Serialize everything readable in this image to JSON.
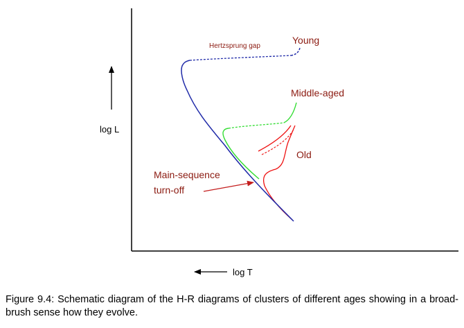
{
  "colors": {
    "axes": "#000000",
    "main_sequence": "#1f2aa8",
    "young_cluster": "#1f2aa8",
    "middle_aged_cluster": "#33dd33",
    "old_cluster": "#ee1111",
    "label_text": "#8b1a10",
    "annotation_arrow": "#c41e1e"
  },
  "axes": {
    "y_label": "log L",
    "x_label": "log T"
  },
  "labels": {
    "hertzsprung_gap": "Hertzsprung gap",
    "young": "Young",
    "middle_aged": "Middle-aged",
    "old": "Old",
    "turnoff_line1": "Main-sequence",
    "turnoff_line2": "turn-off"
  },
  "caption": "Figure 9.4: Schematic diagram of the H-R diagrams of clusters of different ages showing in a broad-brush sense how they evolve."
}
